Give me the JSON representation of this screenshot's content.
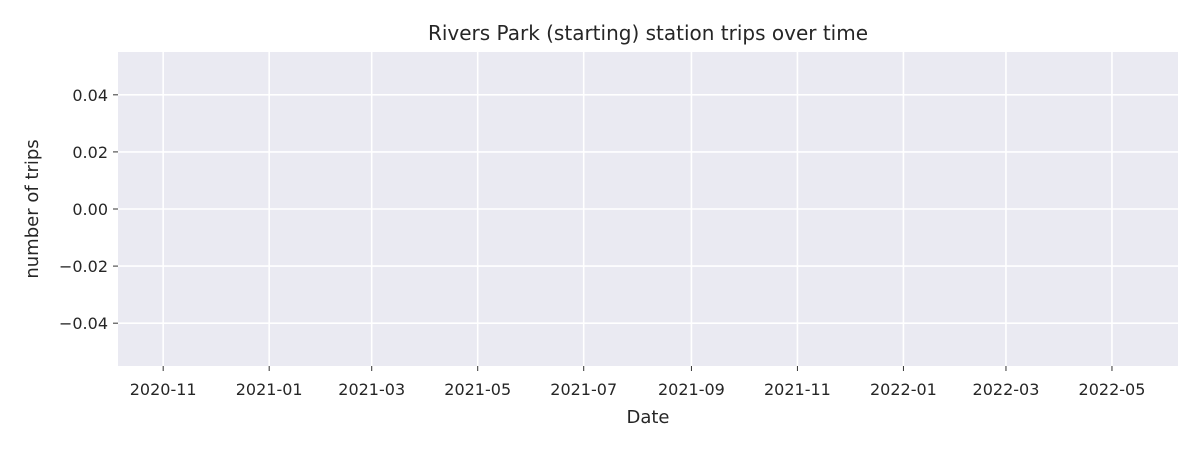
{
  "chart_data": {
    "type": "line",
    "title": "Rivers Park (starting) station trips over time",
    "xlabel": "Date",
    "ylabel": "number of trips",
    "x_ticks": [
      "2020-11",
      "2021-01",
      "2021-03",
      "2021-05",
      "2021-07",
      "2021-09",
      "2021-11",
      "2022-01",
      "2022-03",
      "2022-05"
    ],
    "y_ticks": [
      "0.04",
      "0.02",
      "0.00",
      "−0.02",
      "−0.04"
    ],
    "y_tick_values": [
      0.04,
      0.02,
      0.0,
      -0.02,
      -0.04
    ],
    "ylim": [
      -0.055,
      0.055
    ],
    "xlim": [
      "2020-10-06",
      "2022-06-08"
    ],
    "series": [],
    "grid": true,
    "background_color": "#eaeaf2",
    "grid_color": "#ffffff"
  }
}
